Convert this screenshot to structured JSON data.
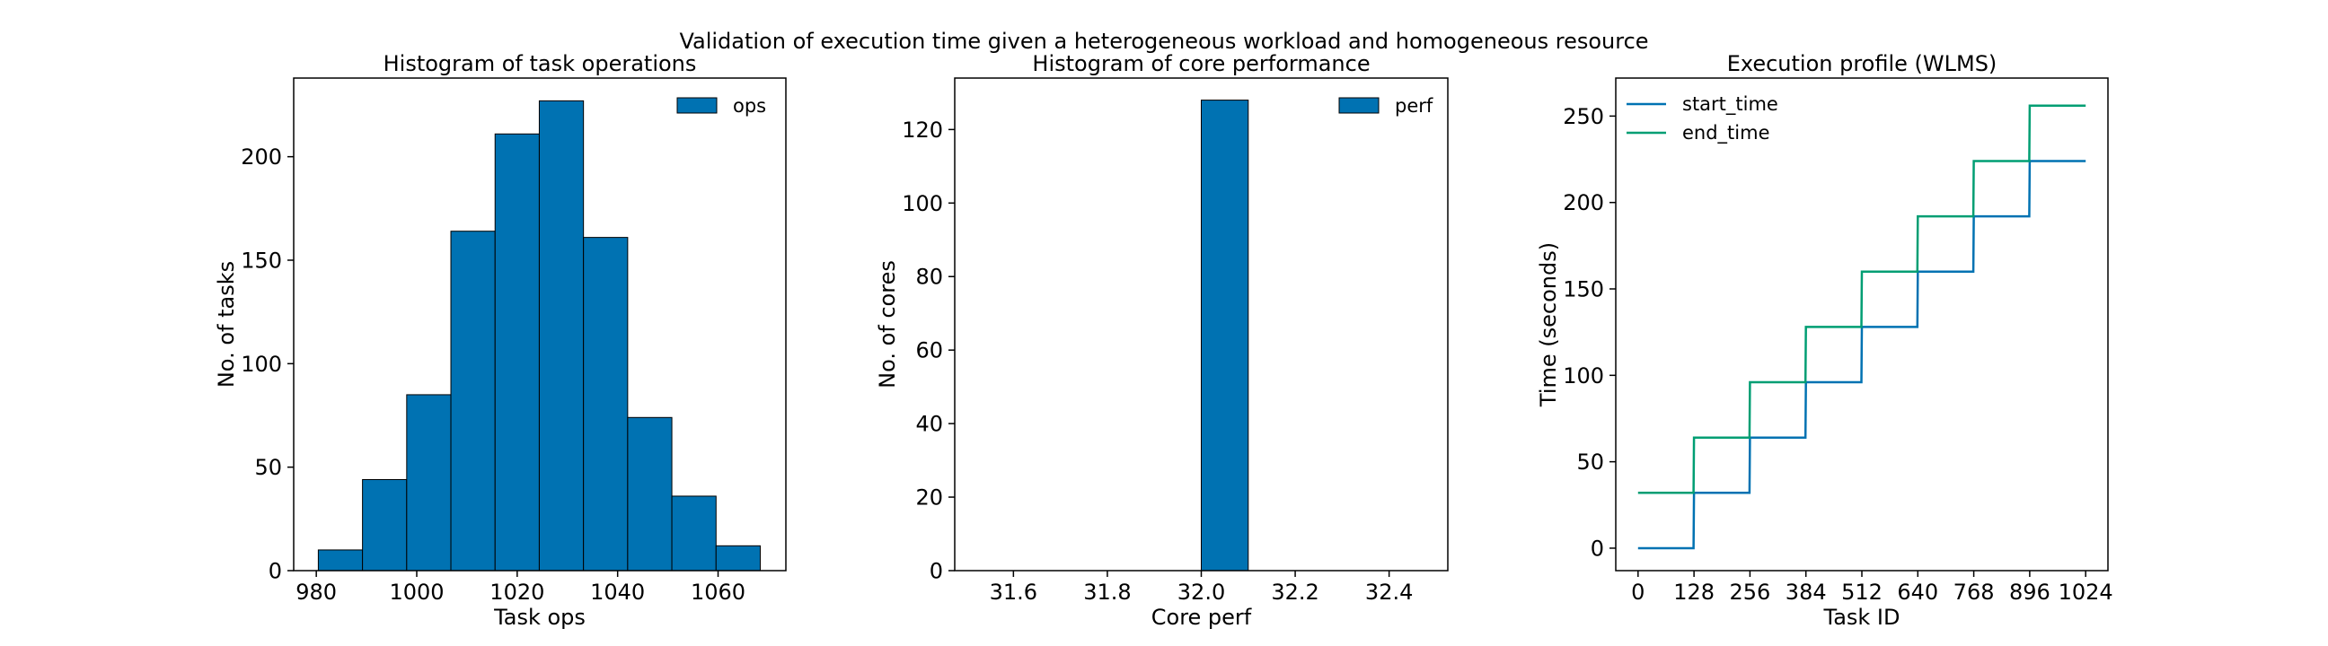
{
  "suptitle": "Validation of execution time given a heterogeneous workload and homogeneous resource",
  "colors": {
    "blue": "#0072b2",
    "green": "#009e73",
    "edge": "#000000",
    "axis": "#000000"
  },
  "chart_data": [
    {
      "type": "bar",
      "title": "Histogram of task operations",
      "xlabel": "Task ops",
      "ylabel": "No. of tasks",
      "xlim": [
        975.5,
        1073.5
      ],
      "ylim": [
        0,
        238
      ],
      "xticks": [
        980,
        1000,
        1020,
        1040,
        1060
      ],
      "yticks": [
        0,
        50,
        100,
        150,
        200
      ],
      "bin_edges": [
        980.4,
        989.2,
        998.0,
        1006.8,
        1015.6,
        1024.4,
        1033.2,
        1042.0,
        1050.8,
        1059.6,
        1068.4
      ],
      "series": [
        {
          "name": "ops",
          "values": [
            10,
            44,
            85,
            164,
            211,
            227,
            161,
            74,
            36,
            12
          ]
        }
      ],
      "legend": "top-right"
    },
    {
      "type": "bar",
      "title": "Histogram of core performance",
      "xlabel": "Core perf",
      "ylabel": "No. of cores",
      "xlim": [
        31.475,
        32.525
      ],
      "ylim": [
        0,
        134
      ],
      "xticks": [
        31.6,
        31.8,
        32.0,
        32.2,
        32.4
      ],
      "xticklabels": [
        "31.6",
        "31.8",
        "32.0",
        "32.2",
        "32.4"
      ],
      "yticks": [
        0,
        20,
        40,
        60,
        80,
        100,
        120
      ],
      "bin_edges": [
        31.5,
        31.6,
        31.7,
        31.8,
        31.9,
        32.0,
        32.1,
        32.2,
        32.3,
        32.4,
        32.5
      ],
      "series": [
        {
          "name": "perf",
          "values": [
            0,
            0,
            0,
            0,
            0,
            128,
            0,
            0,
            0,
            0
          ]
        }
      ],
      "legend": "top-right"
    },
    {
      "type": "line",
      "title": "Execution profile (WLMS)",
      "xlabel": "Task ID",
      "ylabel": "Time (seconds)",
      "xlim": [
        -51,
        1075
      ],
      "ylim": [
        -13,
        272
      ],
      "xticks": [
        0,
        128,
        256,
        384,
        512,
        640,
        768,
        896,
        1024
      ],
      "yticks": [
        0,
        50,
        100,
        150,
        200,
        250
      ],
      "x": [
        0,
        127,
        128,
        255,
        256,
        383,
        384,
        511,
        512,
        639,
        640,
        767,
        768,
        895,
        896,
        1024
      ],
      "series": [
        {
          "name": "start_time",
          "color": "#0072b2",
          "values": [
            0,
            0,
            32,
            32,
            64,
            64,
            96,
            96,
            128,
            128,
            160,
            160,
            192,
            192,
            224,
            224
          ]
        },
        {
          "name": "end_time",
          "color": "#009e73",
          "values": [
            32,
            32,
            64,
            64,
            96,
            96,
            128,
            128,
            160,
            160,
            192,
            192,
            224,
            224,
            256,
            256
          ]
        }
      ],
      "legend": "top-left"
    }
  ]
}
